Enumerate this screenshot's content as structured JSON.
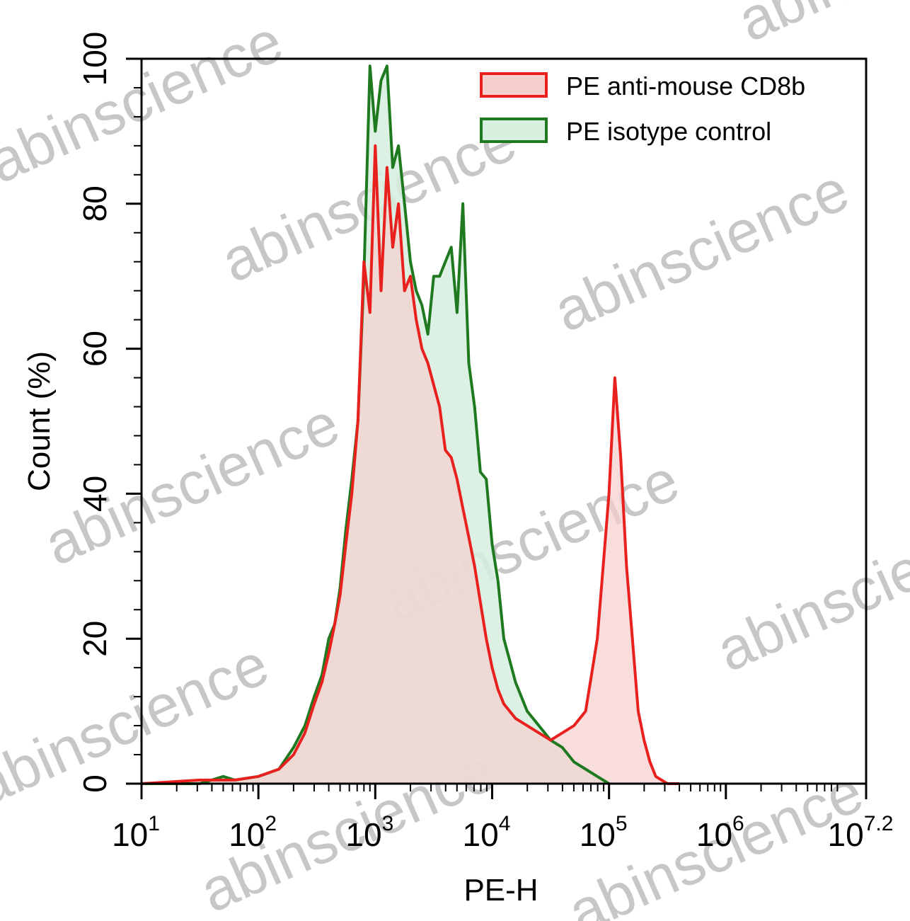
{
  "chart_data": {
    "type": "area",
    "xscale": "log",
    "xlim": [
      10,
      15848931.92
    ],
    "ylim": [
      0,
      100
    ],
    "xlabel": "PE-H",
    "ylabel": "Count  (%)",
    "x_ticks": [
      {
        "base": "10",
        "exp": "1"
      },
      {
        "base": "10",
        "exp": "2"
      },
      {
        "base": "10",
        "exp": "3"
      },
      {
        "base": "10",
        "exp": "4"
      },
      {
        "base": "10",
        "exp": "5"
      },
      {
        "base": "10",
        "exp": "6"
      },
      {
        "base": "10",
        "exp": "7.2"
      }
    ],
    "y_ticks": [
      "0",
      "20",
      "40",
      "60",
      "80",
      "100"
    ],
    "legend_position": "top-right",
    "series": [
      {
        "name": "PE isotype control",
        "color": "#1f7a1f",
        "fill": "#d6efdf",
        "x": [
          10,
          31.6,
          50,
          63,
          100,
          150,
          200,
          250,
          300,
          350,
          400,
          450,
          500,
          560,
          630,
          710,
          800,
          900,
          1000,
          1120,
          1260,
          1410,
          1580,
          1780,
          2000,
          2240,
          2510,
          2820,
          3160,
          3550,
          3980,
          4470,
          5010,
          5620,
          6310,
          7080,
          7940,
          8910,
          10000,
          11220,
          12590,
          14130,
          15850,
          19950,
          25120,
          31620,
          39810,
          50120,
          63100,
          79430,
          100000
        ],
        "y": [
          0,
          0,
          1,
          0.5,
          1,
          2,
          5,
          8,
          12,
          15,
          20,
          22,
          27,
          35,
          42,
          50,
          70,
          99,
          90,
          97,
          99,
          85,
          88,
          80,
          72,
          68,
          66,
          62,
          70,
          70,
          72,
          74,
          65,
          80,
          58,
          52,
          43,
          42,
          33,
          28,
          20,
          17,
          14,
          10,
          8,
          6,
          5,
          3,
          2,
          1,
          0
        ]
      },
      {
        "name": "PE anti-mouse CD8b",
        "color": "#e8211f",
        "fill": "#f7cfcf",
        "x": [
          10,
          31.6,
          63,
          100,
          150,
          200,
          250,
          300,
          350,
          400,
          450,
          500,
          560,
          630,
          710,
          800,
          900,
          1000,
          1120,
          1260,
          1410,
          1580,
          1780,
          2000,
          2240,
          2510,
          2820,
          3160,
          3550,
          3980,
          4470,
          5010,
          5620,
          6310,
          7080,
          7940,
          8910,
          10000,
          11220,
          12590,
          14130,
          15850,
          19950,
          25120,
          31620,
          39810,
          50120,
          63100,
          70790,
          79430,
          89130,
          100000,
          112200,
          125900,
          141300,
          158500,
          177800,
          199500,
          223900,
          251200,
          316200,
          398100
        ],
        "y": [
          0,
          0.5,
          0.5,
          1,
          2,
          4,
          7,
          11,
          14,
          18,
          22,
          26,
          33,
          40,
          50,
          72,
          65,
          88,
          68,
          85,
          74,
          80,
          68,
          70,
          64,
          60,
          58,
          55,
          52,
          46,
          45,
          42,
          38,
          34,
          30,
          25,
          20,
          16,
          13,
          11,
          10,
          9,
          8,
          7,
          6,
          7,
          8,
          10,
          15,
          20,
          30,
          40,
          56,
          45,
          30,
          20,
          10,
          6,
          3,
          1,
          0,
          0
        ]
      }
    ]
  },
  "watermark_text": "abinscience"
}
